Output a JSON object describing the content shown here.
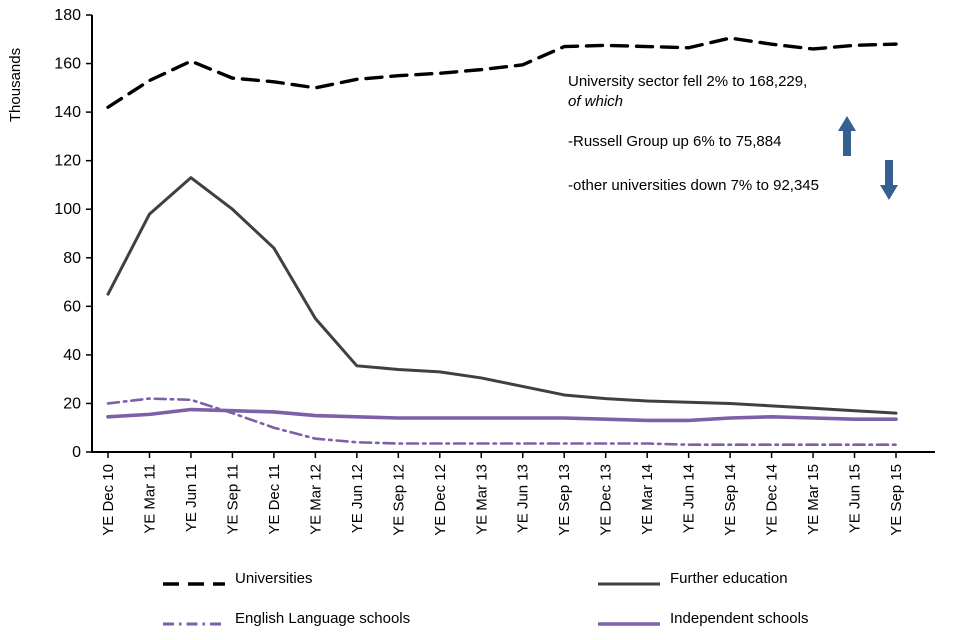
{
  "chart_data": {
    "type": "line",
    "title": "",
    "xlabel": "",
    "ylabel": "Thousands",
    "ylim": [
      0,
      180
    ],
    "ytick_step": 20,
    "grid": false,
    "legend_position": "bottom",
    "categories": [
      "YE Dec 10",
      "YE Mar 11",
      "YE Jun 11",
      "YE Sep 11",
      "YE Dec 11",
      "YE Mar 12",
      "YE Jun 12",
      "YE Sep 12",
      "YE Dec 12",
      "YE Mar 13",
      "YE Jun 13",
      "YE Sep 13",
      "YE Dec 13",
      "YE Mar 14",
      "YE Jun 14",
      "YE Sep 14",
      "YE Dec 14",
      "YE Mar 15",
      "YE Jun 15",
      "YE Sep 15"
    ],
    "series": [
      {
        "name": "Universities",
        "color": "#000000",
        "width": 3.4,
        "dash": "16 9",
        "values": [
          142,
          153,
          161,
          154,
          152.5,
          150,
          153.5,
          155,
          156,
          157.5,
          159.5,
          167,
          167.5,
          167,
          166.5,
          170.5,
          168,
          166,
          167.5,
          168
        ]
      },
      {
        "name": "Further education",
        "color": "#404040",
        "width": 3,
        "dash": "",
        "values": [
          65,
          98,
          113,
          100,
          84,
          55,
          35.5,
          34,
          33,
          30.5,
          27,
          23.5,
          22,
          21,
          20.5,
          20,
          19,
          18,
          17,
          16
        ]
      },
      {
        "name": "English Language schools",
        "color": "#7E60A8",
        "width": 2.6,
        "dash": "11 5 2.5 5",
        "values": [
          20,
          22,
          21.5,
          16,
          10,
          5.5,
          4,
          3.5,
          3.5,
          3.5,
          3.5,
          3.5,
          3.5,
          3.5,
          3,
          3,
          3,
          3,
          3,
          3
        ]
      },
      {
        "name": "Independent schools",
        "color": "#7E60A8",
        "width": 3.6,
        "dash": "",
        "values": [
          14.5,
          15.5,
          17.5,
          17,
          16.5,
          15,
          14.5,
          14,
          14,
          14,
          14,
          14,
          13.5,
          13,
          13,
          14,
          14.5,
          14,
          13.5,
          13.5
        ]
      }
    ],
    "annotations": [
      "University sector fell 2% to 168,229,",
      "of which",
      "-Russell Group up 6% to 75,884",
      "-other universities down 7% to 92,345"
    ]
  },
  "annotation": {
    "line1": "University sector fell 2% to 168,229,",
    "line2": "of which",
    "line3": "-Russell Group up 6% to 75,884",
    "line4": "-other universities down 7% to 92,345",
    "arrow_up_icon": "up-arrow",
    "arrow_down_icon": "down-arrow",
    "arrow_color": "#376092"
  },
  "axes": {
    "ylabel": "Thousands",
    "yticks": [
      "0",
      "20",
      "40",
      "60",
      "80",
      "100",
      "120",
      "140",
      "160",
      "180"
    ]
  }
}
